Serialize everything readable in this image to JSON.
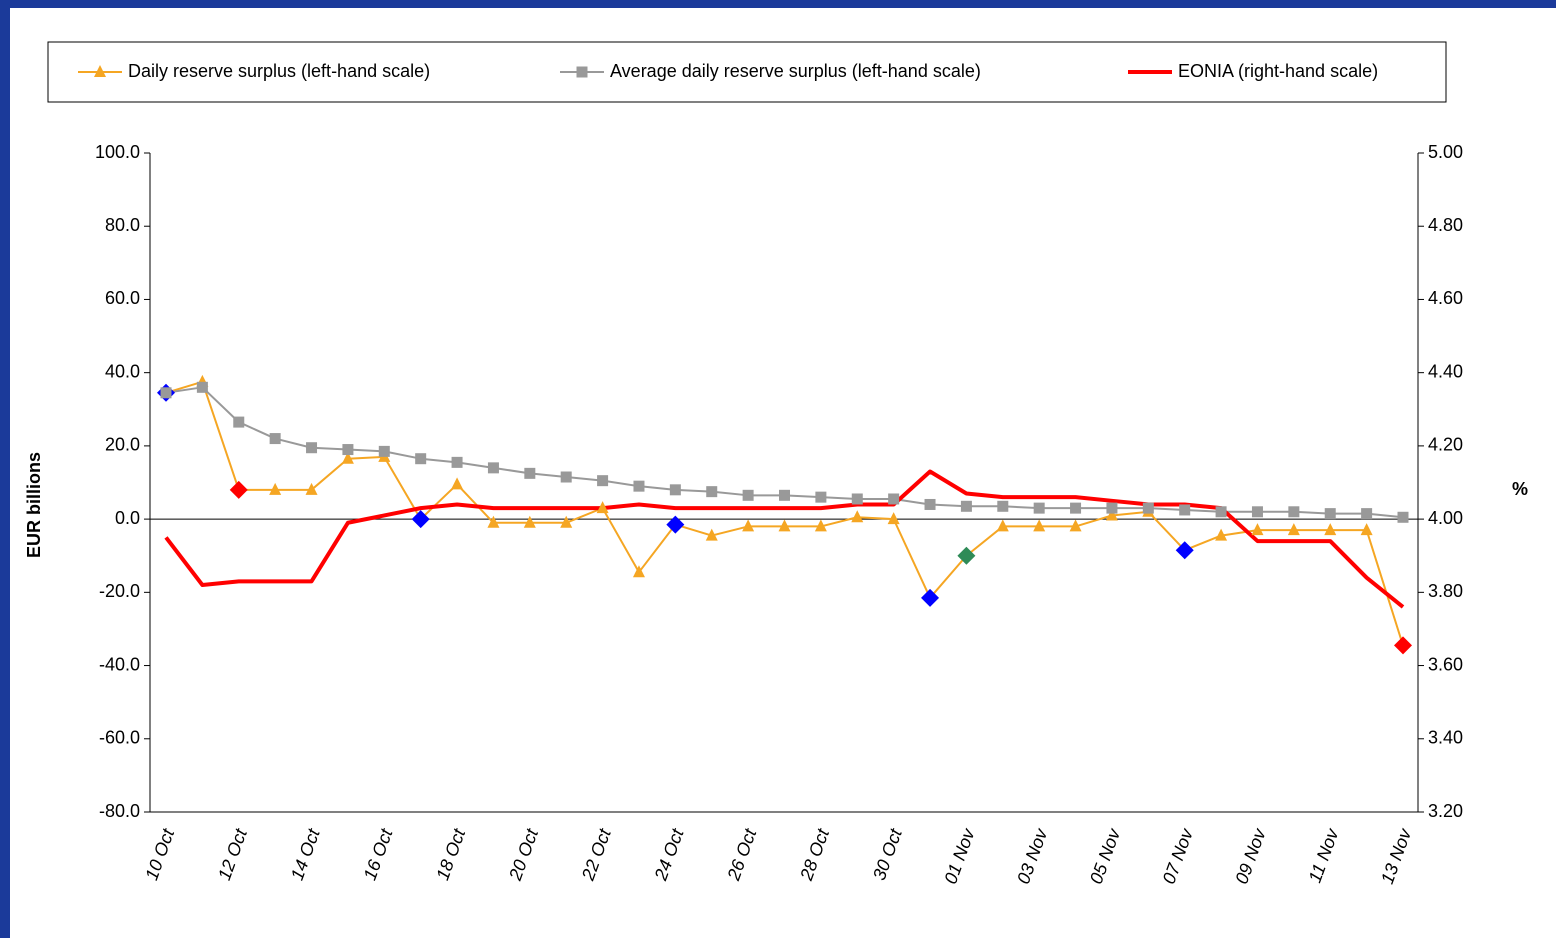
{
  "chart_data": {
    "type": "line",
    "categories": [
      "10 Oct",
      null,
      "12 Oct",
      null,
      "14 Oct",
      null,
      "16 Oct",
      null,
      "18 Oct",
      null,
      "20 Oct",
      null,
      "22 Oct",
      null,
      "24 Oct",
      null,
      "26 Oct",
      null,
      "28 Oct",
      null,
      "30 Oct",
      null,
      "01 Nov",
      null,
      "03 Nov",
      null,
      "05 Nov",
      null,
      "07 Nov",
      null,
      "09 Nov",
      null,
      "11 Nov",
      null,
      "13 Nov"
    ],
    "series": [
      {
        "name": "Daily reserve surplus (left-hand scale)",
        "color": "#f5a623",
        "marker": "triangle",
        "values": [
          34.5,
          37.5,
          8.0,
          8.0,
          8.0,
          16.5,
          17.0,
          0.0,
          9.5,
          -1.0,
          -1.0,
          -1.0,
          3.0,
          -14.5,
          -1.5,
          -4.5,
          -2.0,
          -2.0,
          -2.0,
          0.5,
          0.0,
          -21.5,
          -10.0,
          -2.0,
          -2.0,
          -2.0,
          1.0,
          2.0,
          -8.5,
          -4.5,
          -3.0,
          -3.0,
          -3.0,
          -3.0,
          -34.5
        ],
        "highlight_colors": [
          "#0000ff",
          null,
          "#ff0000",
          null,
          null,
          null,
          null,
          "#0000ff",
          null,
          null,
          null,
          null,
          null,
          null,
          "#0000ff",
          null,
          null,
          null,
          null,
          null,
          null,
          "#0000ff",
          "#2e8b57",
          null,
          null,
          null,
          null,
          null,
          "#0000ff",
          null,
          null,
          null,
          null,
          null,
          "#ff0000"
        ]
      },
      {
        "name": "Average daily reserve surplus (left-hand scale)",
        "color": "#999999",
        "marker": "square",
        "values": [
          34.5,
          36.0,
          26.5,
          22.0,
          19.5,
          19.0,
          18.5,
          16.5,
          15.5,
          14.0,
          12.5,
          11.5,
          10.5,
          9.0,
          8.0,
          7.5,
          6.5,
          6.5,
          6.0,
          5.5,
          5.5,
          4.0,
          3.5,
          3.5,
          3.0,
          3.0,
          3.0,
          3.0,
          2.5,
          2.0,
          2.0,
          2.0,
          1.5,
          1.5,
          0.5
        ]
      },
      {
        "name": "EONIA (right-hand scale)",
        "color": "#ff0000",
        "axis": "y2",
        "values": [
          3.95,
          3.82,
          3.83,
          3.83,
          3.83,
          3.99,
          4.01,
          4.03,
          4.04,
          4.03,
          4.03,
          4.03,
          4.03,
          4.04,
          4.03,
          4.03,
          4.03,
          4.03,
          4.03,
          4.04,
          4.04,
          4.13,
          4.07,
          4.06,
          4.06,
          4.06,
          4.05,
          4.04,
          4.04,
          4.03,
          3.94,
          3.94,
          3.94,
          3.84,
          3.76
        ]
      }
    ],
    "y_label": "EUR billions",
    "y2_label": "%",
    "ylim": [
      -80,
      100
    ],
    "yticks": [
      {
        "value": -80,
        "label": "-80.0"
      },
      {
        "value": -60,
        "label": "-60.0"
      },
      {
        "value": -40,
        "label": "-40.0"
      },
      {
        "value": -20,
        "label": "-20.0"
      },
      {
        "value": 0,
        "label": "0.0"
      },
      {
        "value": 20,
        "label": "20.0"
      },
      {
        "value": 40,
        "label": "40.0"
      },
      {
        "value": 60,
        "label": "60.0"
      },
      {
        "value": 80,
        "label": "80.0"
      },
      {
        "value": 100,
        "label": "100.0"
      }
    ],
    "y2lim": [
      3.2,
      5.0
    ],
    "y2ticks": [
      {
        "value": 3.2,
        "label": "3.20"
      },
      {
        "value": 3.4,
        "label": "3.40"
      },
      {
        "value": 3.6,
        "label": "3.60"
      },
      {
        "value": 3.8,
        "label": "3.80"
      },
      {
        "value": 4.0,
        "label": "4.00"
      },
      {
        "value": 4.2,
        "label": "4.20"
      },
      {
        "value": 4.4,
        "label": "4.40"
      },
      {
        "value": 4.6,
        "label": "4.60"
      },
      {
        "value": 4.8,
        "label": "4.80"
      },
      {
        "value": 5.0,
        "label": "5.00"
      }
    ],
    "legend": "top"
  }
}
